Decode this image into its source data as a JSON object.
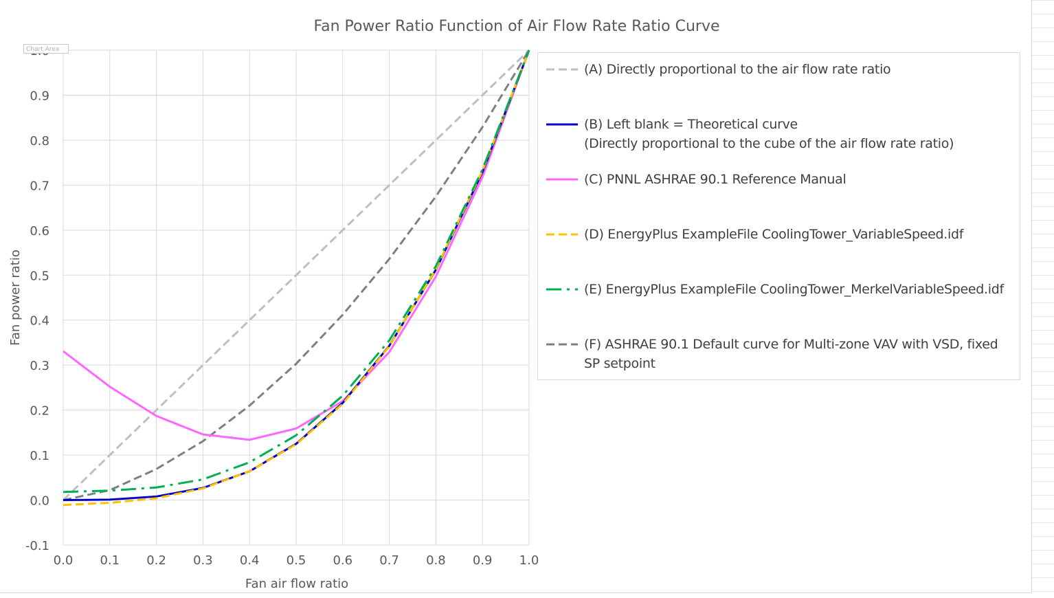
{
  "sheet": {
    "tooltip": "Chart Area"
  },
  "chart_data": {
    "type": "line",
    "title": "Fan Power Ratio Function of Air Flow Rate Ratio Curve",
    "xlabel": "Fan air flow ratio",
    "ylabel": "Fan power ratio",
    "xlim": [
      0.0,
      1.0
    ],
    "ylim": [
      -0.1,
      1.0
    ],
    "x_ticks": [
      "0.0",
      "0.1",
      "0.2",
      "0.3",
      "0.4",
      "0.5",
      "0.6",
      "0.7",
      "0.8",
      "0.9",
      "1.0"
    ],
    "y_ticks": [
      "-0.1",
      "0.0",
      "0.1",
      "0.2",
      "0.3",
      "0.4",
      "0.5",
      "0.6",
      "0.7",
      "0.8",
      "0.9",
      "1.0"
    ],
    "grid": true,
    "legend_position": "right",
    "x": [
      0.0,
      0.1,
      0.2,
      0.3,
      0.4,
      0.5,
      0.6,
      0.7,
      0.8,
      0.9,
      1.0
    ],
    "series": [
      {
        "name": "(A) Directly proportional to the air flow rate ratio",
        "color": "#bfbfbf",
        "style": "dashed",
        "values": [
          0.0,
          0.1,
          0.2,
          0.3,
          0.4,
          0.5,
          0.6,
          0.7,
          0.8,
          0.9,
          1.0
        ]
      },
      {
        "name": "(B) Left blank = Theoretical curve\n(Directly proportional to the cube of the air flow rate ratio)",
        "color": "#0000cc",
        "style": "solid",
        "values": [
          0.0,
          0.001,
          0.008,
          0.027,
          0.064,
          0.125,
          0.216,
          0.343,
          0.512,
          0.729,
          1.0
        ]
      },
      {
        "name": "(C) PNNL ASHRAE 90.1 Reference Manual",
        "color": "#ff66ff",
        "style": "solid",
        "values": [
          0.331,
          0.252,
          0.187,
          0.146,
          0.134,
          0.159,
          0.22,
          0.329,
          0.497,
          0.718,
          1.0
        ]
      },
      {
        "name": "(D) EnergyPlus ExampleFile CoolingTower_VariableSpeed.idf",
        "color": "#ffc000",
        "style": "dashed",
        "values": [
          -0.011,
          -0.006,
          0.004,
          0.026,
          0.064,
          0.124,
          0.214,
          0.342,
          0.513,
          0.732,
          1.0
        ]
      },
      {
        "name": "(E) EnergyPlus ExampleFile CoolingTower_MerkelVariableSpeed.idf",
        "color": "#00b050",
        "style": "longdashdot",
        "values": [
          0.018,
          0.021,
          0.028,
          0.046,
          0.084,
          0.144,
          0.232,
          0.355,
          0.52,
          0.735,
          1.0
        ]
      },
      {
        "name": "(F) ASHRAE 90.1 Default curve for Multi-zone VAV with VSD, fixed\nSP setpoint",
        "color": "#7f7f7f",
        "style": "dashed",
        "values": [
          0.0,
          0.022,
          0.069,
          0.131,
          0.21,
          0.303,
          0.412,
          0.536,
          0.675,
          0.829,
          1.0
        ]
      }
    ]
  }
}
